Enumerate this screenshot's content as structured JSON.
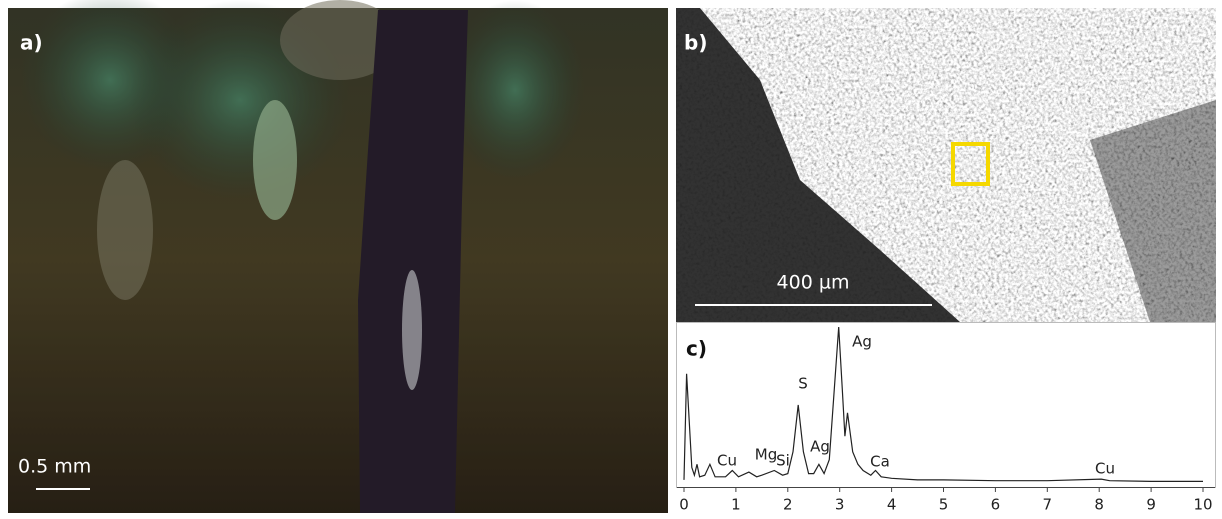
{
  "panels": {
    "a": {
      "label": "a)",
      "scale_bar": "0.5 mm"
    },
    "b": {
      "label": "b)",
      "scale_bar": "400 µm"
    }
  },
  "chart_data": {
    "type": "line",
    "title": "c)",
    "x": [
      0,
      0.05,
      0.1,
      0.15,
      0.2,
      0.25,
      0.3,
      0.4,
      0.5,
      0.6,
      0.8,
      0.93,
      1.05,
      1.25,
      1.4,
      1.5,
      1.74,
      1.9,
      2.0,
      2.1,
      2.2,
      2.3,
      2.4,
      2.5,
      2.6,
      2.7,
      2.8,
      2.98,
      3.05,
      3.1,
      3.15,
      3.25,
      3.35,
      3.45,
      3.6,
      3.69,
      3.8,
      4,
      4.5,
      5,
      6,
      7,
      8.04,
      8.2,
      9,
      10
    ],
    "values": [
      2,
      70,
      40,
      10,
      5,
      12,
      4,
      5,
      12,
      4,
      4,
      8,
      4,
      7,
      4,
      5,
      8,
      5,
      6,
      20,
      50,
      20,
      6,
      6,
      12,
      6,
      15,
      100,
      60,
      30,
      45,
      20,
      12,
      8,
      5,
      8,
      4,
      3,
      2,
      2,
      1.5,
      1.5,
      2.5,
      1.5,
      1,
      1
    ],
    "color": "#222222",
    "xlim": [
      -0.1,
      10.1
    ],
    "xticks": [
      0,
      1,
      2,
      3,
      4,
      5,
      6,
      7,
      8,
      9,
      10
    ],
    "ylim": [
      0,
      100
    ],
    "annotations": [
      "Cu",
      "Mg",
      "Si",
      "S",
      "Ag",
      "Ag",
      "Ca",
      "Cu"
    ]
  }
}
